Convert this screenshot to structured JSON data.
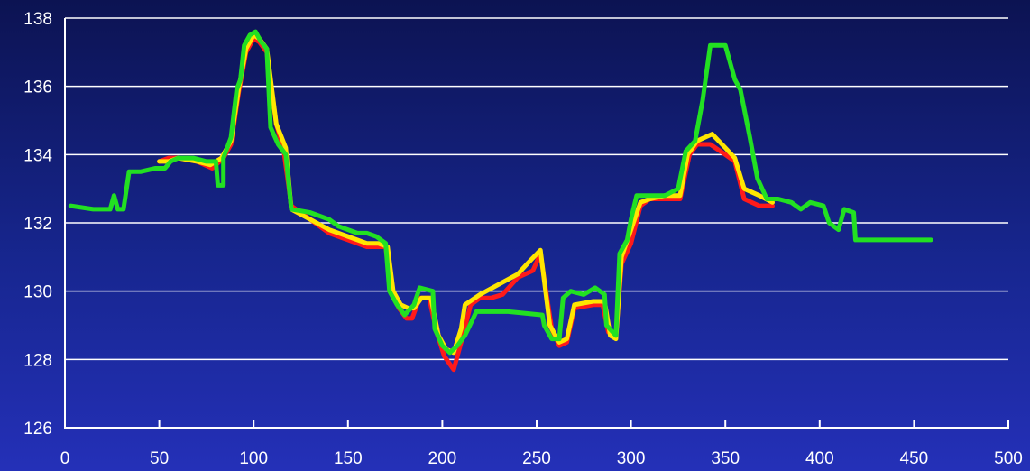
{
  "chart_data": {
    "type": "line",
    "title": "",
    "xlabel": "",
    "ylabel": "",
    "xlim": [
      0,
      500
    ],
    "ylim": [
      126,
      138
    ],
    "x_ticks": [
      "0",
      "50",
      "100",
      "150",
      "200",
      "250",
      "300",
      "350",
      "400",
      "450",
      "500"
    ],
    "y_ticks": [
      "126",
      "128",
      "130",
      "132",
      "134",
      "136",
      "138"
    ],
    "grid": "horizontal",
    "colors": {
      "background_top": "#0c1352",
      "background_bottom": "#2430b8",
      "grid": "#ffffff",
      "axis": "#ffffff"
    },
    "series": [
      {
        "color": "#ff1a1a",
        "points": [
          [
            50,
            133.8
          ],
          [
            55,
            133.9
          ],
          [
            60,
            133.9
          ],
          [
            70,
            133.8
          ],
          [
            78,
            133.6
          ],
          [
            84,
            133.9
          ],
          [
            88,
            134.3
          ],
          [
            92,
            135.8
          ],
          [
            96,
            137.0
          ],
          [
            100,
            137.4
          ],
          [
            103,
            137.3
          ],
          [
            107,
            137.0
          ],
          [
            112,
            134.9
          ],
          [
            116,
            134.1
          ],
          [
            120,
            132.5
          ],
          [
            130,
            132.1
          ],
          [
            140,
            131.7
          ],
          [
            150,
            131.5
          ],
          [
            160,
            131.3
          ],
          [
            165,
            131.3
          ],
          [
            170,
            131.3
          ],
          [
            173,
            130.0
          ],
          [
            177,
            129.5
          ],
          [
            181,
            129.2
          ],
          [
            184,
            129.2
          ],
          [
            188,
            129.8
          ],
          [
            193,
            129.8
          ],
          [
            197,
            128.8
          ],
          [
            201,
            128.1
          ],
          [
            206,
            127.7
          ],
          [
            210,
            128.5
          ],
          [
            215,
            129.6
          ],
          [
            220,
            129.8
          ],
          [
            226,
            129.8
          ],
          [
            232,
            129.9
          ],
          [
            240,
            130.4
          ],
          [
            248,
            130.6
          ],
          [
            252,
            131.1
          ],
          [
            258,
            128.9
          ],
          [
            262,
            128.4
          ],
          [
            266,
            128.5
          ],
          [
            270,
            129.5
          ],
          [
            280,
            129.6
          ],
          [
            285,
            129.6
          ],
          [
            288,
            128.8
          ],
          [
            292,
            128.7
          ],
          [
            295,
            130.8
          ],
          [
            300,
            131.4
          ],
          [
            305,
            132.5
          ],
          [
            310,
            132.7
          ],
          [
            318,
            132.7
          ],
          [
            326,
            132.7
          ],
          [
            331,
            134.0
          ],
          [
            335,
            134.3
          ],
          [
            342,
            134.3
          ],
          [
            350,
            134.0
          ],
          [
            355,
            133.8
          ],
          [
            360,
            132.7
          ],
          [
            368,
            132.5
          ],
          [
            375,
            132.5
          ]
        ]
      },
      {
        "color": "#ffe600",
        "points": [
          [
            50,
            133.8
          ],
          [
            55,
            133.8
          ],
          [
            60,
            133.9
          ],
          [
            70,
            133.8
          ],
          [
            77,
            133.7
          ],
          [
            83,
            133.9
          ],
          [
            88,
            134.4
          ],
          [
            92,
            135.9
          ],
          [
            96,
            137.1
          ],
          [
            100,
            137.5
          ],
          [
            103,
            137.4
          ],
          [
            107,
            137.1
          ],
          [
            112,
            134.9
          ],
          [
            117,
            134.2
          ],
          [
            120,
            132.4
          ],
          [
            130,
            132.1
          ],
          [
            140,
            131.8
          ],
          [
            150,
            131.6
          ],
          [
            160,
            131.4
          ],
          [
            166,
            131.4
          ],
          [
            171,
            131.3
          ],
          [
            174,
            130.0
          ],
          [
            178,
            129.6
          ],
          [
            182,
            129.5
          ],
          [
            185,
            129.5
          ],
          [
            189,
            129.8
          ],
          [
            194,
            129.8
          ],
          [
            198,
            128.7
          ],
          [
            202,
            128.3
          ],
          [
            206,
            128.2
          ],
          [
            210,
            128.9
          ],
          [
            212,
            129.6
          ],
          [
            220,
            129.9
          ],
          [
            230,
            130.2
          ],
          [
            240,
            130.5
          ],
          [
            245,
            130.8
          ],
          [
            252,
            131.2
          ],
          [
            257,
            129.0
          ],
          [
            262,
            128.5
          ],
          [
            266,
            128.6
          ],
          [
            270,
            129.6
          ],
          [
            280,
            129.7
          ],
          [
            286,
            129.7
          ],
          [
            289,
            128.7
          ],
          [
            292,
            128.6
          ],
          [
            295,
            131.0
          ],
          [
            300,
            131.8
          ],
          [
            305,
            132.6
          ],
          [
            310,
            132.7
          ],
          [
            318,
            132.8
          ],
          [
            326,
            132.8
          ],
          [
            330,
            134.0
          ],
          [
            335,
            134.4
          ],
          [
            343,
            134.6
          ],
          [
            350,
            134.2
          ],
          [
            355,
            133.9
          ],
          [
            360,
            133.0
          ],
          [
            368,
            132.8
          ],
          [
            375,
            132.6
          ]
        ]
      },
      {
        "color": "#22e022",
        "points": [
          [
            3,
            132.5
          ],
          [
            15,
            132.4
          ],
          [
            24,
            132.4
          ],
          [
            26,
            132.8
          ],
          [
            28,
            132.4
          ],
          [
            31,
            132.4
          ],
          [
            34,
            133.5
          ],
          [
            40,
            133.5
          ],
          [
            48,
            133.6
          ],
          [
            53,
            133.6
          ],
          [
            56,
            133.8
          ],
          [
            60,
            133.9
          ],
          [
            68,
            133.9
          ],
          [
            75,
            133.8
          ],
          [
            80,
            133.8
          ],
          [
            81,
            133.1
          ],
          [
            84,
            133.1
          ],
          [
            84,
            133.9
          ],
          [
            88,
            134.5
          ],
          [
            91,
            135.9
          ],
          [
            93,
            136.2
          ],
          [
            95,
            137.2
          ],
          [
            98,
            137.5
          ],
          [
            101,
            137.6
          ],
          [
            104,
            137.3
          ],
          [
            107,
            137.1
          ],
          [
            109,
            134.8
          ],
          [
            113,
            134.3
          ],
          [
            117,
            134.0
          ],
          [
            120,
            132.4
          ],
          [
            130,
            132.3
          ],
          [
            135,
            132.2
          ],
          [
            140,
            132.1
          ],
          [
            145,
            131.9
          ],
          [
            155,
            131.7
          ],
          [
            160,
            131.7
          ],
          [
            165,
            131.6
          ],
          [
            170,
            131.4
          ],
          [
            172,
            130.0
          ],
          [
            176,
            129.6
          ],
          [
            180,
            129.3
          ],
          [
            185,
            129.6
          ],
          [
            188,
            130.1
          ],
          [
            195,
            130.0
          ],
          [
            196,
            128.9
          ],
          [
            200,
            128.4
          ],
          [
            204,
            128.2
          ],
          [
            208,
            128.4
          ],
          [
            212,
            128.7
          ],
          [
            218,
            129.4
          ],
          [
            235,
            129.4
          ],
          [
            253,
            129.3
          ],
          [
            254,
            129.0
          ],
          [
            258,
            128.6
          ],
          [
            262,
            128.6
          ],
          [
            264,
            129.8
          ],
          [
            268,
            130.0
          ],
          [
            275,
            129.9
          ],
          [
            281,
            130.1
          ],
          [
            286,
            129.9
          ],
          [
            287,
            129.0
          ],
          [
            292,
            128.7
          ],
          [
            294,
            131.1
          ],
          [
            298,
            131.5
          ],
          [
            300,
            132.1
          ],
          [
            303,
            132.8
          ],
          [
            310,
            132.8
          ],
          [
            318,
            132.8
          ],
          [
            325,
            133.0
          ],
          [
            329,
            134.1
          ],
          [
            334,
            134.4
          ],
          [
            338,
            135.6
          ],
          [
            342,
            137.2
          ],
          [
            350,
            137.2
          ],
          [
            355,
            136.2
          ],
          [
            358,
            135.9
          ],
          [
            363,
            134.5
          ],
          [
            367,
            133.3
          ],
          [
            372,
            132.7
          ],
          [
            378,
            132.7
          ],
          [
            385,
            132.6
          ],
          [
            390,
            132.4
          ],
          [
            395,
            132.6
          ],
          [
            402,
            132.5
          ],
          [
            405,
            132.0
          ],
          [
            410,
            131.8
          ],
          [
            413,
            132.4
          ],
          [
            418,
            132.3
          ],
          [
            419,
            131.5
          ],
          [
            430,
            131.5
          ],
          [
            459,
            131.5
          ]
        ]
      }
    ]
  }
}
